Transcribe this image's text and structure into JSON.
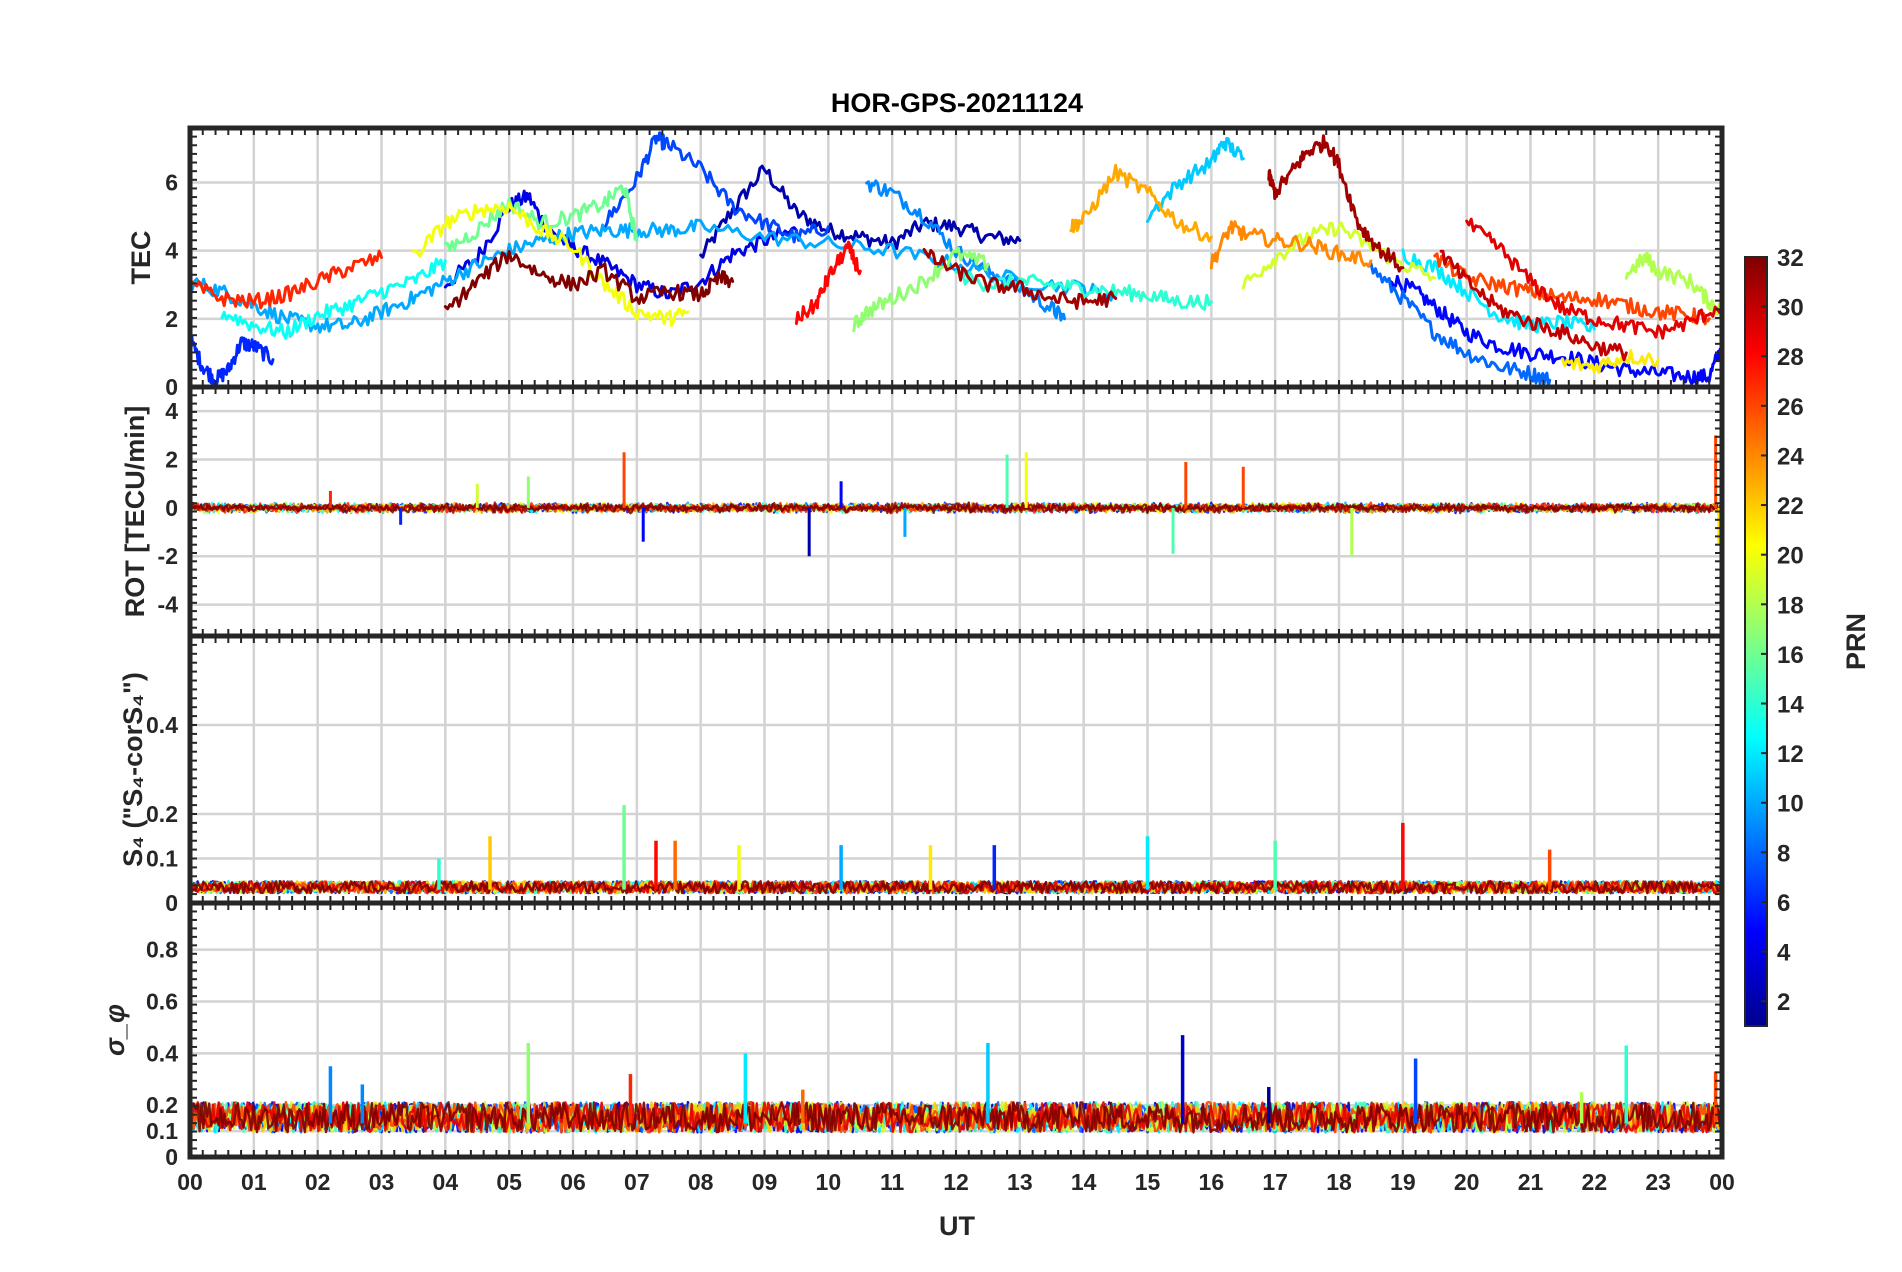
{
  "chart_data": {
    "type": "line",
    "title": "HOR-GPS-20211124",
    "xlabel": "UT",
    "x_ticks": [
      "00",
      "01",
      "02",
      "03",
      "04",
      "05",
      "06",
      "07",
      "08",
      "09",
      "10",
      "11",
      "12",
      "13",
      "14",
      "15",
      "16",
      "17",
      "18",
      "19",
      "20",
      "21",
      "22",
      "23",
      "00"
    ],
    "xlim": [
      0,
      24
    ],
    "colorbar": {
      "label": "PRN",
      "range": [
        1,
        32
      ],
      "ticks": [
        "2",
        "4",
        "6",
        "8",
        "10",
        "12",
        "14",
        "16",
        "18",
        "20",
        "22",
        "24",
        "26",
        "28",
        "30",
        "32"
      ],
      "colormap": "jet",
      "colors": [
        "#00008f",
        "#0000ff",
        "#0080ff",
        "#00ffff",
        "#80ff80",
        "#ffff00",
        "#ff8000",
        "#ff0000",
        "#800000"
      ]
    },
    "panels": [
      {
        "id": "tec",
        "ylabel": "TEC",
        "ylim": [
          0,
          7.6
        ],
        "yticks": [
          0,
          2,
          4,
          6
        ],
        "ytick_labels": [
          "0",
          "2",
          "4",
          "6"
        ],
        "series": [
          {
            "prn": 2,
            "x": [
              8.0,
              8.5,
              9.0,
              9.5,
              10.0,
              10.5,
              11.0,
              11.5,
              12.0,
              12.5,
              13.0
            ],
            "y": [
              3.8,
              5.2,
              6.4,
              5.1,
              4.6,
              4.4,
              4.2,
              4.8,
              4.7,
              4.4,
              4.3
            ]
          },
          {
            "prn": 4,
            "x": [
              4.0,
              4.5,
              5.0,
              5.3,
              5.6,
              6.0,
              6.5,
              7.0,
              7.5,
              8.0,
              8.5,
              9.0,
              9.5
            ],
            "y": [
              3.0,
              3.8,
              5.3,
              5.6,
              4.6,
              4.1,
              3.6,
              3.0,
              2.7,
              3.1,
              3.9,
              4.3,
              4.6
            ]
          },
          {
            "prn": 5,
            "x": [
              18.8,
              19.2,
              19.6,
              20.0,
              20.5,
              21.0,
              21.5,
              22.0,
              22.5,
              23.0,
              23.5,
              23.8,
              24.0
            ],
            "y": [
              3.2,
              2.8,
              2.2,
              1.6,
              1.2,
              1.0,
              0.9,
              0.7,
              0.5,
              0.4,
              0.3,
              0.3,
              1.2
            ]
          },
          {
            "prn": 6,
            "x": [
              0.0,
              0.2,
              0.4,
              0.6,
              0.8,
              1.0,
              1.3
            ],
            "y": [
              1.4,
              0.6,
              0.2,
              0.5,
              1.3,
              1.2,
              0.8
            ]
          },
          {
            "prn": 7,
            "x": [
              6.5,
              7.0,
              7.3,
              7.5,
              8.0,
              8.5,
              9.0,
              9.5,
              10.0
            ],
            "y": [
              4.8,
              6.1,
              7.3,
              7.1,
              6.4,
              5.3,
              4.8,
              4.4,
              4.7
            ]
          },
          {
            "prn": 8,
            "x": [
              18.5,
              19.0,
              19.5,
              20.0,
              20.5,
              21.0,
              21.3
            ],
            "y": [
              3.5,
              2.6,
              1.6,
              1.0,
              0.6,
              0.4,
              0.2
            ]
          },
          {
            "prn": 9,
            "x": [
              10.6,
              11.0,
              11.5,
              12.0,
              12.5,
              13.0,
              13.5,
              13.7
            ],
            "y": [
              6.0,
              5.7,
              5.0,
              4.0,
              3.4,
              2.9,
              2.3,
              2.0
            ]
          },
          {
            "prn": 10,
            "x": [
              0.0,
              0.5,
              1.0,
              1.5,
              2.0,
              2.5,
              3.0,
              3.5,
              4.0,
              4.5,
              5.0,
              5.5,
              6.0,
              6.5,
              7.0,
              7.5,
              8.0,
              9.0,
              10.0,
              11.0,
              12.0,
              13.0,
              14.0,
              14.5
            ],
            "y": [
              3.1,
              2.8,
              2.4,
              2.0,
              1.8,
              1.8,
              2.2,
              2.6,
              3.1,
              3.6,
              4.0,
              4.3,
              4.5,
              4.6,
              4.6,
              4.6,
              4.7,
              4.4,
              4.2,
              4.0,
              3.6,
              3.1,
              2.9,
              2.6
            ]
          },
          {
            "prn": 11,
            "x": [
              15.0,
              15.5,
              16.0,
              16.2,
              16.5
            ],
            "y": [
              5.0,
              6.0,
              6.6,
              7.2,
              6.7
            ]
          },
          {
            "prn": 12,
            "x": [
              19.0,
              19.5,
              20.0,
              20.5,
              21.0,
              21.5,
              22.0
            ],
            "y": [
              3.9,
              3.5,
              2.8,
              2.1,
              1.8,
              1.9,
              1.7
            ]
          },
          {
            "prn": 13,
            "x": [
              0.5,
              1.0,
              1.5,
              2.0,
              2.5,
              3.0,
              3.5,
              4.0
            ],
            "y": [
              2.2,
              1.8,
              1.6,
              2.1,
              2.4,
              2.8,
              3.1,
              3.7
            ]
          },
          {
            "prn": 14,
            "x": [
              12.0,
              12.5,
              13.0,
              13.5,
              14.0,
              14.5,
              15.0,
              15.5,
              16.0
            ],
            "y": [
              3.3,
              3.0,
              3.1,
              3.0,
              2.9,
              2.8,
              2.7,
              2.5,
              2.5
            ]
          },
          {
            "prn": 16,
            "x": [
              4.0,
              4.5,
              5.0,
              5.5,
              6.0,
              6.5,
              6.8,
              7.0
            ],
            "y": [
              4.0,
              4.6,
              5.4,
              4.8,
              5.0,
              5.4,
              5.9,
              4.3
            ]
          },
          {
            "prn": 17,
            "x": [
              10.4,
              10.6,
              11.0,
              11.5,
              12.0,
              12.5
            ],
            "y": [
              1.8,
              2.2,
              2.6,
              3.1,
              3.9,
              3.6
            ]
          },
          {
            "prn": 18,
            "x": [
              22.5,
              22.8,
              23.0,
              23.5,
              23.8,
              24.0
            ],
            "y": [
              3.3,
              3.8,
              3.4,
              3.1,
              2.5,
              2.2
            ]
          },
          {
            "prn": 19,
            "x": [
              16.5,
              17.0,
              17.5,
              18.0,
              18.5,
              19.0,
              19.5
            ],
            "y": [
              3.0,
              3.8,
              4.4,
              4.7,
              4.1,
              3.6,
              3.2
            ]
          },
          {
            "prn": 20,
            "x": [
              3.5,
              4.0,
              4.5,
              5.0,
              5.5,
              6.0,
              6.5,
              7.0,
              7.5,
              7.8
            ],
            "y": [
              3.8,
              4.8,
              5.2,
              5.3,
              4.6,
              4.1,
              3.0,
              2.2,
              2.0,
              2.2
            ]
          },
          {
            "prn": 21,
            "x": [
              21.5,
              22.0,
              22.5,
              23.0
            ],
            "y": [
              0.7,
              0.6,
              0.9,
              0.8
            ]
          },
          {
            "prn": 23,
            "x": [
              13.8,
              14.0,
              14.5,
              15.0,
              15.5,
              16.0
            ],
            "y": [
              4.7,
              4.9,
              6.3,
              5.7,
              4.8,
              4.4
            ]
          },
          {
            "prn": 24,
            "x": [
              16.0,
              16.3,
              16.5,
              17.0,
              17.5,
              18.0,
              18.5
            ],
            "y": [
              3.6,
              4.7,
              4.5,
              4.3,
              4.2,
              3.9,
              3.7
            ]
          },
          {
            "prn": 26,
            "x": [
              19.5,
              20.0,
              20.5,
              21.0,
              21.5,
              22.0,
              22.5,
              23.0,
              23.5,
              23.8
            ],
            "y": [
              3.8,
              3.2,
              3.0,
              2.8,
              2.6,
              2.6,
              2.4,
              2.2,
              2.1,
              2.0
            ]
          },
          {
            "prn": 27,
            "x": [
              0.0,
              0.5,
              1.0,
              1.5,
              2.0,
              2.5,
              3.0
            ],
            "y": [
              3.0,
              2.6,
              2.5,
              2.7,
              3.1,
              3.5,
              3.8
            ]
          },
          {
            "prn": 28,
            "x": [
              9.5,
              9.8,
              10.0,
              10.3,
              10.5
            ],
            "y": [
              2.0,
              2.4,
              3.2,
              4.1,
              3.4
            ]
          },
          {
            "prn": 29,
            "x": [
              20.0,
              20.5,
              21.0,
              21.5,
              22.0,
              22.5,
              23.0,
              23.5,
              24.0
            ],
            "y": [
              4.8,
              4.1,
              3.1,
              2.3,
              2.0,
              1.8,
              1.6,
              1.9,
              2.4
            ]
          },
          {
            "prn": 31,
            "x": [
              11.5,
              12.0,
              12.5,
              13.0,
              13.5,
              14.0,
              14.5
            ],
            "y": [
              3.9,
              3.4,
              3.0,
              2.9,
              2.6,
              2.5,
              2.6
            ]
          },
          {
            "prn": 32,
            "x": [
              4.0,
              4.5,
              5.0,
              5.5,
              6.0,
              6.5,
              7.0,
              7.5,
              8.0,
              8.3,
              8.5
            ],
            "y": [
              2.2,
              3.1,
              3.9,
              3.3,
              3.0,
              3.4,
              2.6,
              2.8,
              2.7,
              3.2,
              3.1
            ]
          },
          {
            "prn": 31,
            "x": [
              16.9,
              17.0,
              17.3,
              17.5,
              17.8,
              18.0,
              18.3,
              18.6,
              19.0
            ],
            "y": [
              6.2,
              5.7,
              6.4,
              6.9,
              7.2,
              6.5,
              4.8,
              4.1,
              3.5
            ]
          },
          {
            "prn": 30,
            "x": [
              19.6,
              20.0,
              20.5,
              21.0,
              21.5,
              22.0,
              22.5
            ],
            "y": [
              3.9,
              3.1,
              2.3,
              1.9,
              1.6,
              1.2,
              1.0
            ]
          }
        ]
      },
      {
        "id": "rot",
        "ylabel": "ROT [TECU/min]",
        "ylim": [
          -5.3,
          5.0
        ],
        "yticks": [
          -4,
          -2,
          0,
          2,
          4
        ],
        "ytick_labels": [
          "-4",
          "-2",
          "0",
          "2",
          "4"
        ],
        "mean": 0,
        "noise_amplitude": 0.35,
        "spikes": [
          {
            "x": 2.2,
            "y": 0.7
          },
          {
            "x": 3.3,
            "y": -0.7
          },
          {
            "x": 4.5,
            "y": 1.0
          },
          {
            "x": 5.3,
            "y": 1.3
          },
          {
            "x": 6.8,
            "y": 2.3
          },
          {
            "x": 7.1,
            "y": -1.4
          },
          {
            "x": 9.7,
            "y": -2.0
          },
          {
            "x": 10.2,
            "y": 1.1
          },
          {
            "x": 11.2,
            "y": -1.2
          },
          {
            "x": 12.8,
            "y": 2.2
          },
          {
            "x": 13.1,
            "y": 2.3
          },
          {
            "x": 15.4,
            "y": -1.9
          },
          {
            "x": 15.6,
            "y": 1.9
          },
          {
            "x": 16.5,
            "y": 1.7
          },
          {
            "x": 18.2,
            "y": -2.0
          },
          {
            "x": 23.9,
            "y": 3.0
          },
          {
            "x": 23.95,
            "y": -1.5
          }
        ]
      },
      {
        "id": "s4",
        "ylabel": "S₄ (\"S₄-corS₄\")",
        "ylim": [
          0,
          0.6
        ],
        "yticks": [
          0,
          0.1,
          0.2,
          0.4
        ],
        "ytick_labels": [
          "0",
          "0.1",
          "0.2",
          "0.4"
        ],
        "baseline": 0.03,
        "spikes": [
          {
            "x": 6.8,
            "y": 0.22
          },
          {
            "x": 7.3,
            "y": 0.14
          },
          {
            "x": 7.6,
            "y": 0.14
          },
          {
            "x": 8.6,
            "y": 0.13
          },
          {
            "x": 10.2,
            "y": 0.13
          },
          {
            "x": 11.6,
            "y": 0.13
          },
          {
            "x": 12.6,
            "y": 0.13
          },
          {
            "x": 15.0,
            "y": 0.15
          },
          {
            "x": 17.0,
            "y": 0.14
          },
          {
            "x": 19.0,
            "y": 0.18
          },
          {
            "x": 21.3,
            "y": 0.12
          },
          {
            "x": 4.7,
            "y": 0.15
          },
          {
            "x": 3.9,
            "y": 0.1
          }
        ]
      },
      {
        "id": "sigma",
        "ylabel": "σ_φ",
        "ylim": [
          0,
          0.98
        ],
        "yticks": [
          0,
          0.1,
          0.2,
          0.4,
          0.6,
          0.8
        ],
        "ytick_labels": [
          "0",
          "0.1",
          "0.2",
          "0.4",
          "0.6",
          "0.8"
        ],
        "baseline": 0.13,
        "spikes": [
          {
            "x": 2.2,
            "y": 0.35
          },
          {
            "x": 2.7,
            "y": 0.28
          },
          {
            "x": 5.3,
            "y": 0.44
          },
          {
            "x": 6.9,
            "y": 0.32
          },
          {
            "x": 8.7,
            "y": 0.4
          },
          {
            "x": 9.6,
            "y": 0.26
          },
          {
            "x": 12.5,
            "y": 0.44
          },
          {
            "x": 15.55,
            "y": 0.47
          },
          {
            "x": 16.9,
            "y": 0.27
          },
          {
            "x": 19.2,
            "y": 0.38
          },
          {
            "x": 21.8,
            "y": 0.25
          },
          {
            "x": 22.5,
            "y": 0.43
          },
          {
            "x": 23.9,
            "y": 0.33
          }
        ]
      }
    ]
  }
}
